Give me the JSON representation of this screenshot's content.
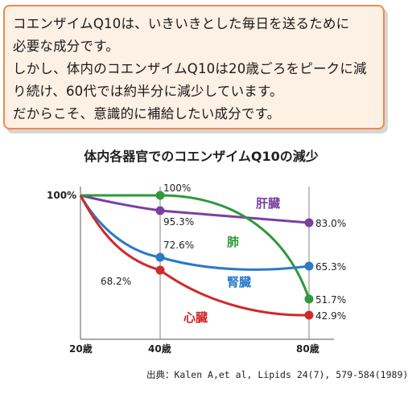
{
  "intro": {
    "lines": [
      "コエンザイムQ10は、いきいきとした毎日を送るために",
      "必要な成分です。",
      "しかし、体内のコエンザイムQ10は20歳ごろをピークに減",
      "り続け、60代では約半分に減少しています。",
      "だからこそ、意識的に補給したい成分です。"
    ]
  },
  "chart_data": {
    "type": "line",
    "title": "体内各器官でのコエンザイムQ10の減少",
    "x": [
      20,
      40,
      80
    ],
    "x_tick_labels": [
      "20歳",
      "40歳",
      "80歳"
    ],
    "y_tick_labels": [
      "100%"
    ],
    "ylim": [
      40,
      100
    ],
    "grid": true,
    "series": [
      {
        "name": "肝臓",
        "color": "#7b3fa0",
        "values": [
          100,
          95.3,
          83.0
        ],
        "labels": [
          "",
          "95.3%",
          "83.0%"
        ]
      },
      {
        "name": "肺",
        "color": "#2e9a3a",
        "values": [
          100,
          100,
          51.7
        ],
        "labels": [
          "",
          "100%",
          "51.7%"
        ]
      },
      {
        "name": "腎臓",
        "color": "#2b79c7",
        "values": [
          100,
          72.6,
          65.3
        ],
        "labels": [
          "",
          "72.6%",
          "65.3%"
        ]
      },
      {
        "name": "心臓",
        "color": "#d12a2a",
        "values": [
          100,
          68.2,
          42.9
        ],
        "labels": [
          "",
          "68.2%",
          "42.9%"
        ]
      }
    ],
    "source": "出典：Kalen A,et al, Lipids 24(7), 579-584(1989)"
  }
}
